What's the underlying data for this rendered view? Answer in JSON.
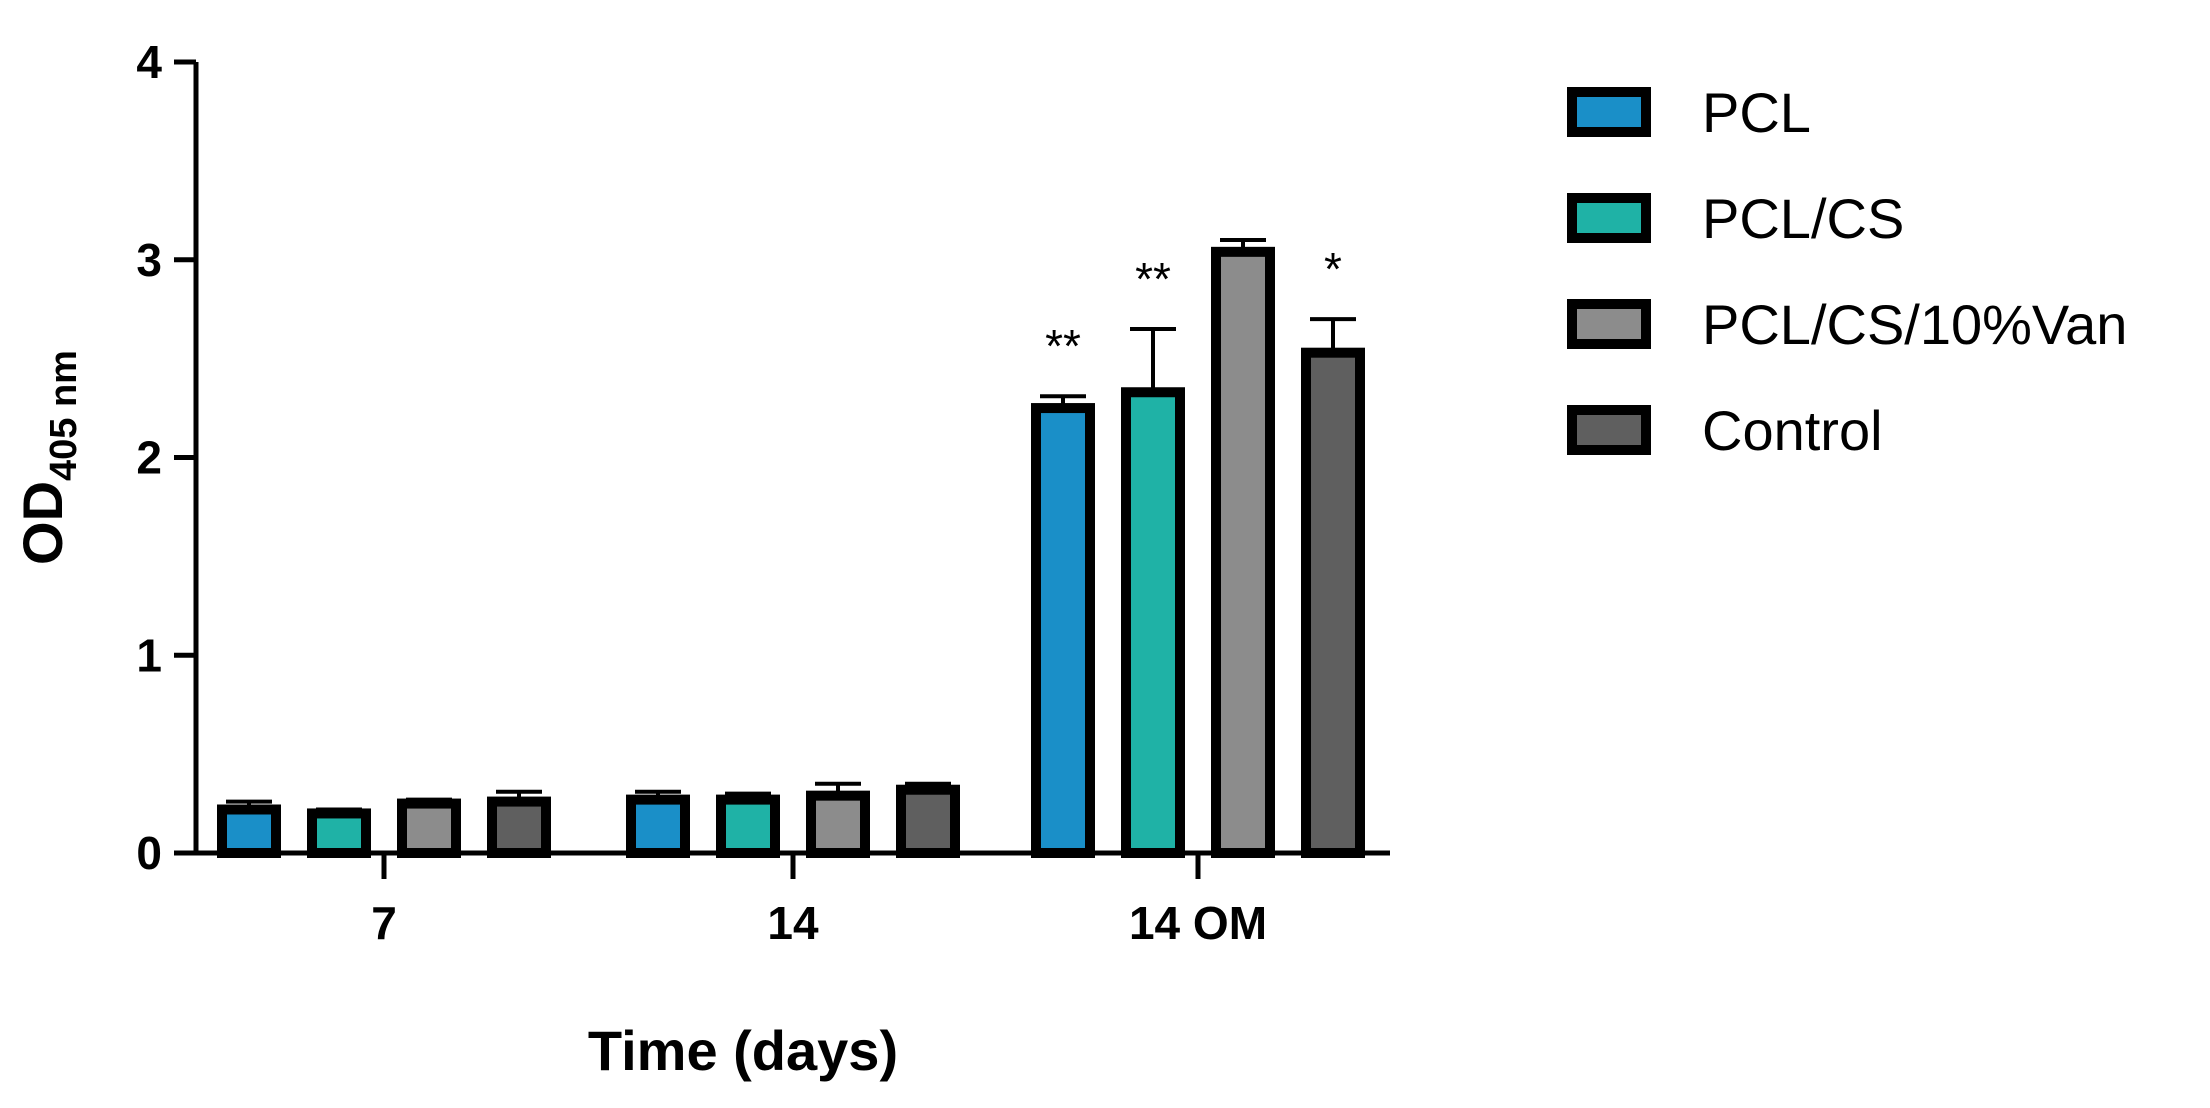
{
  "chart_data": {
    "type": "bar",
    "xlabel": "Time (days)",
    "ylabel_main": "OD",
    "ylabel_sub": "405 nm",
    "ylim": [
      0,
      4
    ],
    "yticks": [
      0,
      1,
      2,
      3,
      4
    ],
    "categories": [
      "7",
      "14",
      "14 OM"
    ],
    "legend_position": "right",
    "series": [
      {
        "name": "PCL",
        "color": "#1a8fc8",
        "values": [
          0.22,
          0.27,
          2.25
        ],
        "errors": [
          0.04,
          0.04,
          0.06
        ]
      },
      {
        "name": "PCL/CS",
        "color": "#1fb2a6",
        "values": [
          0.2,
          0.27,
          2.33
        ],
        "errors": [
          0.02,
          0.03,
          0.32
        ]
      },
      {
        "name": "PCL/CS/10%Van",
        "color": "#8c8c8c",
        "values": [
          0.25,
          0.29,
          3.04
        ],
        "errors": [
          0.02,
          0.06,
          0.06
        ]
      },
      {
        "name": "Control",
        "color": "#5f5f5f",
        "values": [
          0.26,
          0.32,
          2.53
        ],
        "errors": [
          0.05,
          0.03,
          0.17
        ]
      }
    ],
    "annotations": [
      {
        "category": "14 OM",
        "series": "PCL",
        "text": "**"
      },
      {
        "category": "14 OM",
        "series": "PCL/CS",
        "text": "**"
      },
      {
        "category": "14 OM",
        "series": "Control",
        "text": "*"
      }
    ],
    "grid": false
  }
}
